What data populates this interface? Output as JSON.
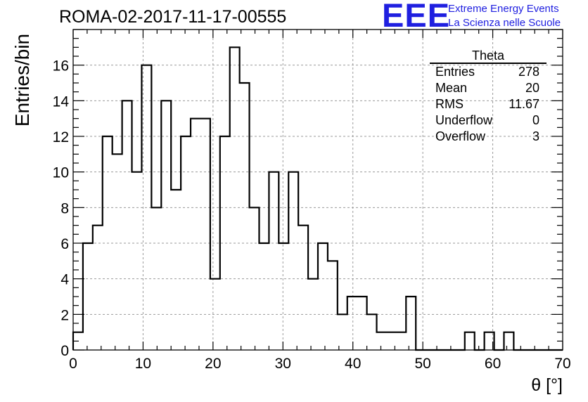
{
  "header": {
    "title": "ROMA-02-2017-11-17-00555",
    "logo_text": "EEE",
    "logo_line1": "Extreme Energy Events",
    "logo_line2": "La Scienza nelle Scuole",
    "logo_color": "#1f1fe0"
  },
  "stats": {
    "title": "Theta",
    "rows": [
      {
        "label": "Entries",
        "value": "278"
      },
      {
        "label": "Mean",
        "value": "20"
      },
      {
        "label": "RMS",
        "value": "11.67"
      },
      {
        "label": "Underflow",
        "value": "0"
      },
      {
        "label": "Overflow",
        "value": "3"
      }
    ]
  },
  "chart_data": {
    "type": "bar",
    "histogram": true,
    "title": "ROMA-02-2017-11-17-00555",
    "xlabel": "θ [°]",
    "ylabel": "Entries/bin",
    "xlim": [
      0,
      70
    ],
    "ylim": [
      0,
      18
    ],
    "grid": true,
    "legend": "top-right",
    "x_ticks": [
      0,
      10,
      20,
      30,
      40,
      50,
      60,
      70
    ],
    "y_ticks": [
      0,
      2,
      4,
      6,
      8,
      10,
      12,
      14,
      16
    ],
    "bin_width": 1.4,
    "bin_edges_start": 0,
    "values": [
      1,
      6,
      7,
      12,
      11,
      14,
      10,
      16,
      8,
      14,
      9,
      12,
      13,
      13,
      4,
      12,
      17,
      15,
      8,
      6,
      10,
      6,
      10,
      7,
      4,
      6,
      5,
      2,
      3,
      3,
      2,
      1,
      1,
      1,
      3,
      0,
      0,
      0,
      0,
      0,
      1,
      0,
      1,
      0,
      1,
      0,
      0,
      0,
      0,
      0
    ]
  }
}
